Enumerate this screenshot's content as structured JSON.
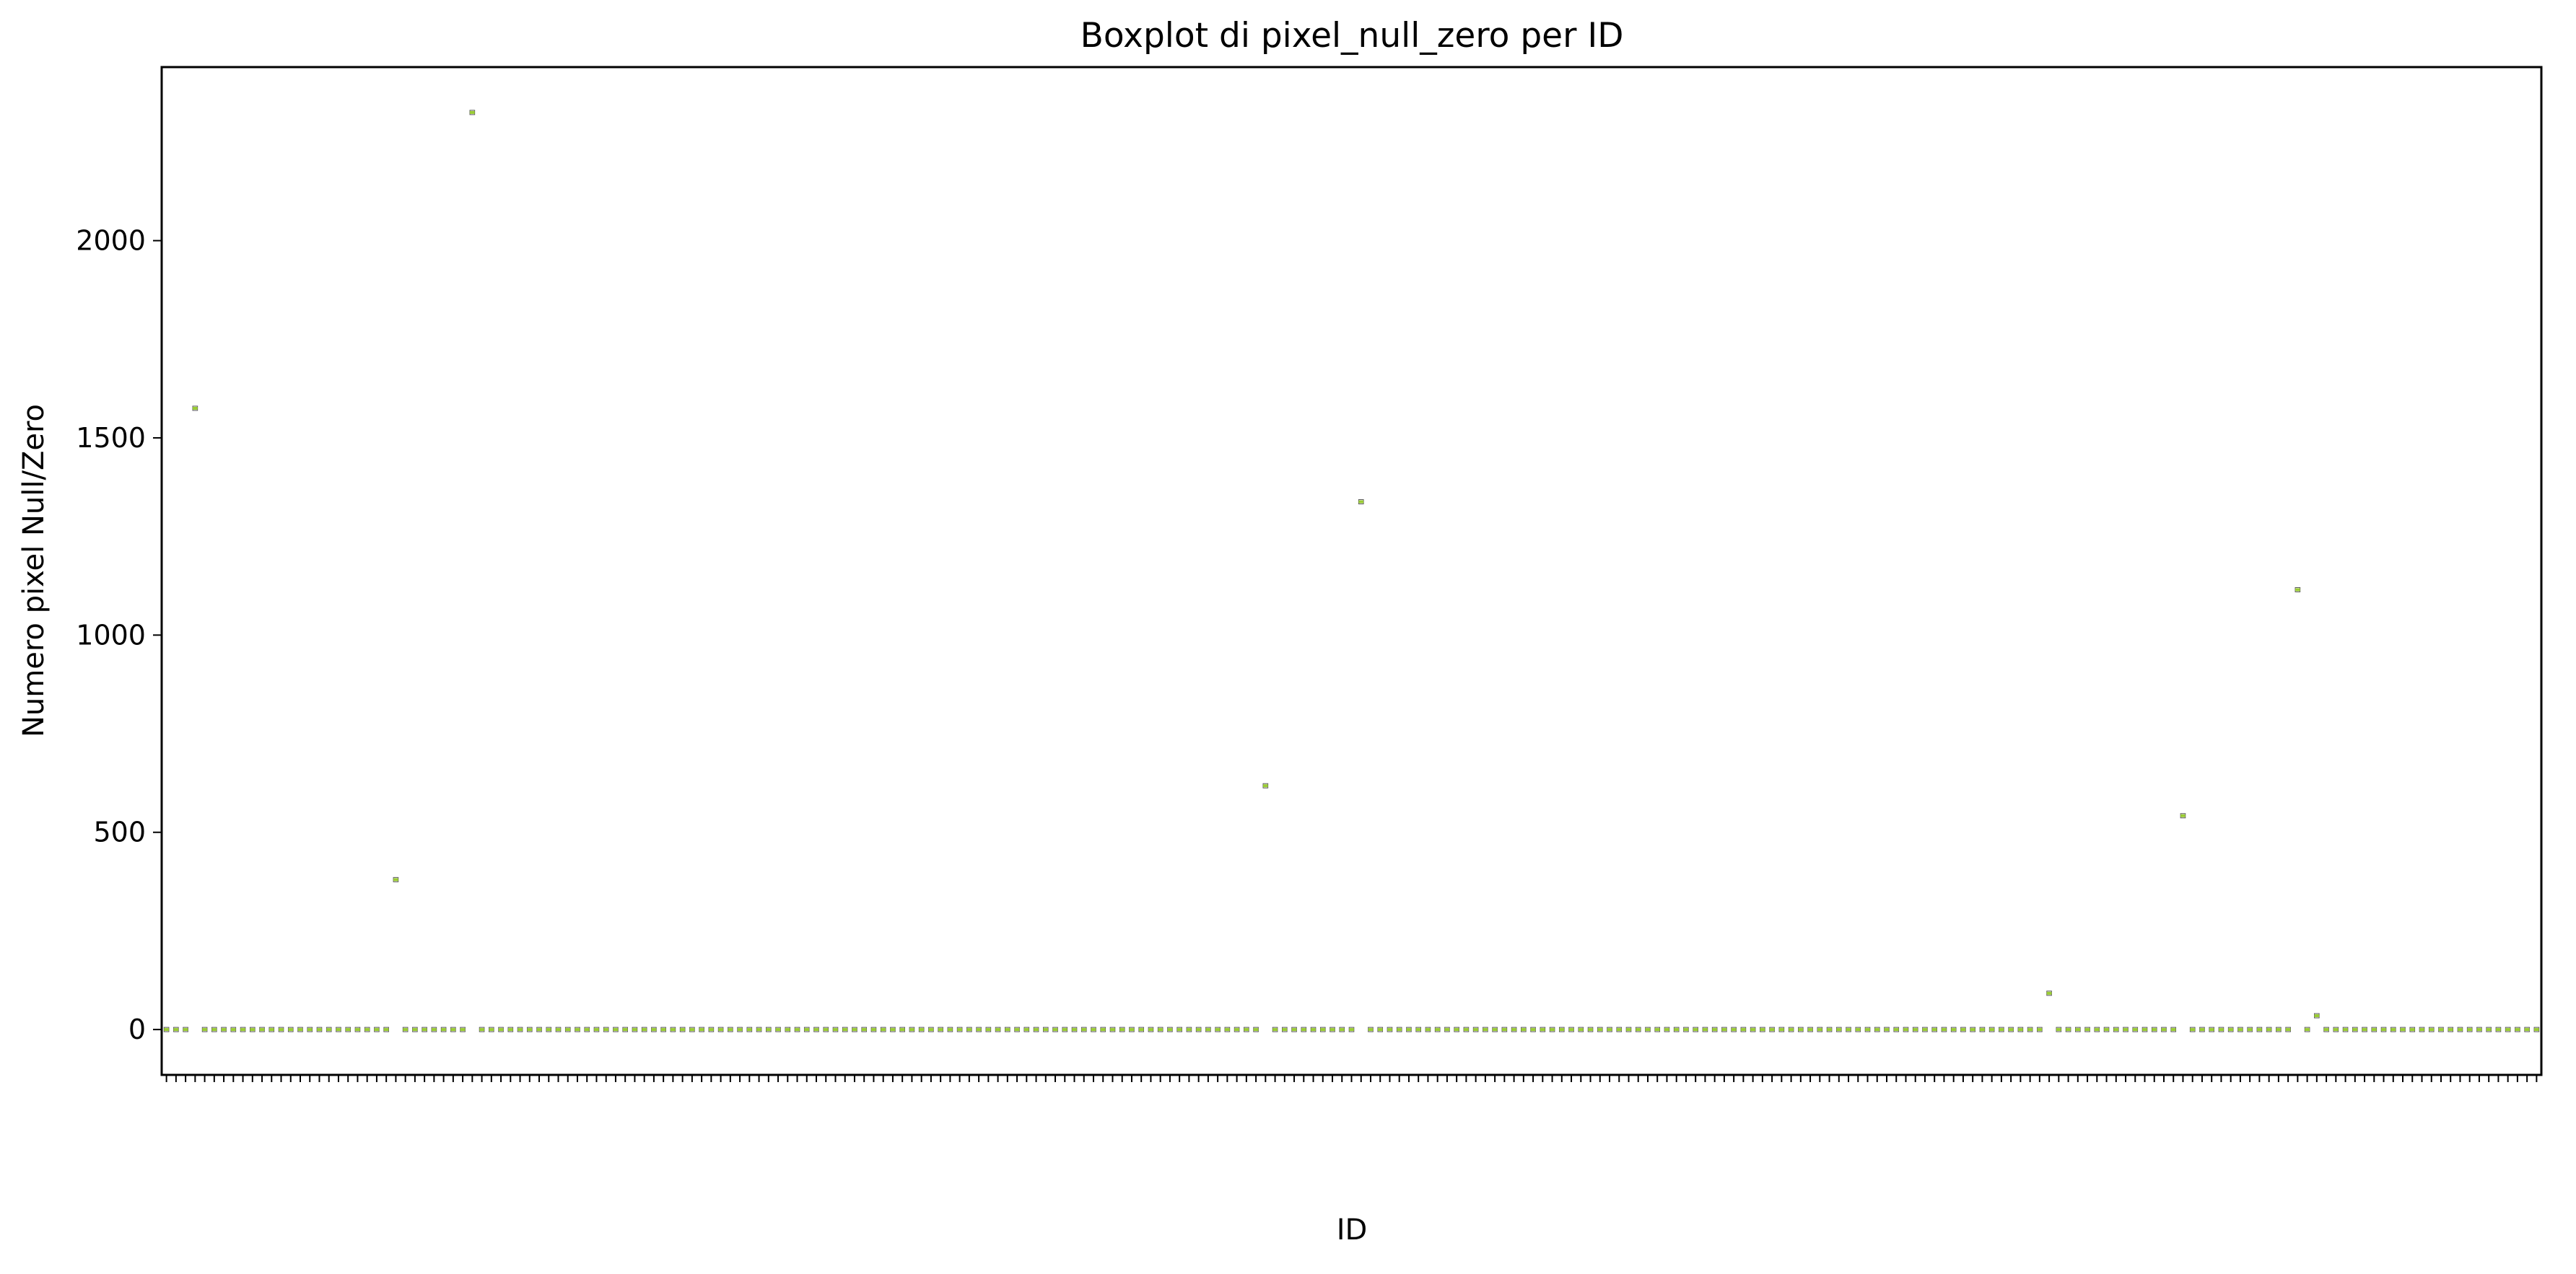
{
  "chart_data": {
    "type": "box",
    "title": "Boxplot di pixel_null_zero per ID",
    "xlabel": "ID",
    "ylabel": "Numero pixel Null/Zero",
    "ylim": [
      -115,
      2440
    ],
    "yticks": [
      0,
      500,
      1000,
      1500,
      2000
    ],
    "ytick_labels": [
      "0",
      "500",
      "1000",
      "1500",
      "2000"
    ],
    "grid": false,
    "legend": "none",
    "box_color": "#9acd32",
    "category_count": 249,
    "categories": [],
    "nonzero_points": [
      {
        "index": 3,
        "value": 1575
      },
      {
        "index": 24,
        "value": 380
      },
      {
        "index": 32,
        "value": 2325
      },
      {
        "index": 115,
        "value": 618
      },
      {
        "index": 125,
        "value": 1338
      },
      {
        "index": 197,
        "value": 92
      },
      {
        "index": 211,
        "value": 542
      },
      {
        "index": 223,
        "value": 1115
      },
      {
        "index": 225,
        "value": 35
      }
    ],
    "base_value": 0
  }
}
